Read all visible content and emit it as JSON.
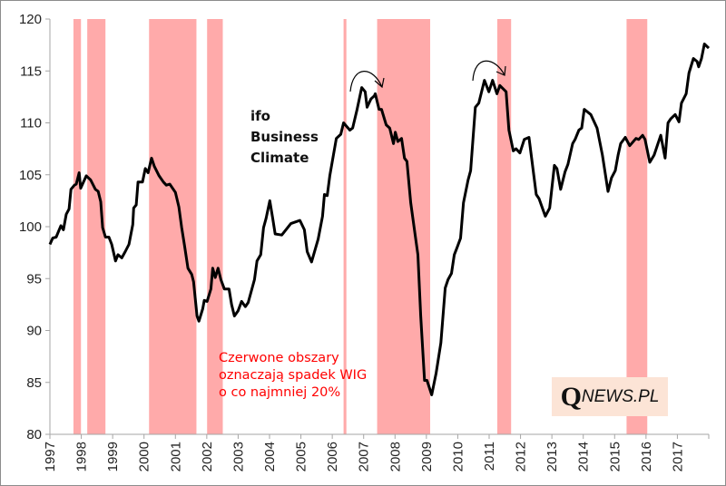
{
  "chart_data": {
    "type": "line",
    "title": "",
    "xlabel": "",
    "ylabel": "",
    "xlim": [
      1997,
      2018
    ],
    "ylim": [
      80,
      120
    ],
    "yticks": [
      80,
      85,
      90,
      95,
      100,
      105,
      110,
      115,
      120
    ],
    "xticks": [
      "1997",
      "1998",
      "1999",
      "2000",
      "2001",
      "2002",
      "2003",
      "2004",
      "2005",
      "2006",
      "2007",
      "2008",
      "2009",
      "2010",
      "2011",
      "2012",
      "2013",
      "2014",
      "2015",
      "2016",
      "2017"
    ],
    "grid": false,
    "legend": "none",
    "line_color": "#000000",
    "band_color": "#ffaaaa",
    "shaded_periods": [
      [
        1997.75,
        1997.99
      ],
      [
        1998.19,
        1998.77
      ],
      [
        2000.16,
        2001.67
      ],
      [
        2002.01,
        2002.51
      ],
      [
        2006.36,
        2006.45
      ],
      [
        2007.43,
        2009.12
      ],
      [
        2011.26,
        2011.7
      ],
      [
        2015.38,
        2016.04
      ]
    ],
    "series": [
      {
        "x": [
          1997.0,
          1997.09,
          1997.2,
          1997.35,
          1997.43,
          1997.52,
          1997.61,
          1997.67,
          1997.78,
          1997.84,
          1997.93,
          1997.98,
          1998.16,
          1998.3,
          1998.45,
          1998.54,
          1998.62,
          1998.68,
          1998.77,
          1998.88,
          1998.97,
          1999.09,
          1999.17,
          1999.29,
          1999.4,
          1999.52,
          1999.64,
          1999.67,
          1999.75,
          1999.81,
          1999.95,
          2000.04,
          2000.13,
          2000.24,
          2000.33,
          2000.48,
          2000.62,
          2000.71,
          2000.82,
          2001.0,
          2001.11,
          2001.2,
          2001.29,
          2001.4,
          2001.52,
          2001.58,
          2001.69,
          2001.75,
          2001.87,
          2001.92,
          2002.01,
          2002.13,
          2002.19,
          2002.27,
          2002.36,
          2002.45,
          2002.56,
          2002.71,
          2002.79,
          2002.88,
          2003.0,
          2003.11,
          2003.23,
          2003.32,
          2003.52,
          2003.6,
          2003.72,
          2003.81,
          2003.89,
          2004.01,
          2004.1,
          2004.18,
          2004.39,
          2004.68,
          2004.97,
          2005.11,
          2005.2,
          2005.34,
          2005.55,
          2005.69,
          2005.75,
          2005.84,
          2005.92,
          2006.13,
          2006.27,
          2006.36,
          2006.56,
          2006.65,
          2006.79,
          2006.94,
          2007.05,
          2007.11,
          2007.23,
          2007.34,
          2007.37,
          2007.49,
          2007.57,
          2007.72,
          2007.83,
          2007.95,
          2008.01,
          2008.09,
          2008.21,
          2008.3,
          2008.38,
          2008.5,
          2008.65,
          2008.73,
          2008.82,
          2008.94,
          2009.02,
          2009.17,
          2009.31,
          2009.46,
          2009.6,
          2009.69,
          2009.8,
          2009.89,
          2009.98,
          2010.09,
          2010.18,
          2010.33,
          2010.41,
          2010.56,
          2010.67,
          2010.85,
          2010.99,
          2011.11,
          2011.25,
          2011.34,
          2011.54,
          2011.63,
          2011.77,
          2011.86,
          2011.98,
          2012.12,
          2012.27,
          2012.5,
          2012.59,
          2012.79,
          2012.93,
          2013.08,
          2013.16,
          2013.28,
          2013.42,
          2013.51,
          2013.66,
          2013.74,
          2013.86,
          2013.95,
          2014.03,
          2014.24,
          2014.44,
          2014.61,
          2014.79,
          2014.9,
          2015.02,
          2015.11,
          2015.19,
          2015.34,
          2015.48,
          2015.68,
          2015.77,
          2015.89,
          2015.97,
          2016.12,
          2016.26,
          2016.47,
          2016.61,
          2016.7,
          2016.79,
          2016.93,
          2017.05,
          2017.13,
          2017.28,
          2017.37,
          2017.51,
          2017.63,
          2017.68,
          2017.77,
          2017.86,
          2018.0
        ],
        "y": [
          98.3,
          98.9,
          99.0,
          100.1,
          99.7,
          101.2,
          101.7,
          103.6,
          104.0,
          104.1,
          105.2,
          103.7,
          104.9,
          104.5,
          103.6,
          103.4,
          102.4,
          99.9,
          99.0,
          99.0,
          98.3,
          96.7,
          97.3,
          97.0,
          97.6,
          98.3,
          100.2,
          101.8,
          102.1,
          104.3,
          104.3,
          105.6,
          105.2,
          106.6,
          105.8,
          104.9,
          104.3,
          104.0,
          104.1,
          103.3,
          101.9,
          99.9,
          98.2,
          96.0,
          95.4,
          94.7,
          91.4,
          90.9,
          92.1,
          92.9,
          92.8,
          94.0,
          96.0,
          95.1,
          96.0,
          94.9,
          94.0,
          94.0,
          92.5,
          91.4,
          91.9,
          92.8,
          92.3,
          92.7,
          94.9,
          96.7,
          97.3,
          99.9,
          100.8,
          102.5,
          100.8,
          99.3,
          99.2,
          100.3,
          100.6,
          99.7,
          97.6,
          96.6,
          98.8,
          101.0,
          103.1,
          103.0,
          104.9,
          108.5,
          108.9,
          110.0,
          109.3,
          109.5,
          111.3,
          113.4,
          113.0,
          111.5,
          112.3,
          112.6,
          112.8,
          111.3,
          111.3,
          109.8,
          109.5,
          108.0,
          109.1,
          108.2,
          108.5,
          106.6,
          106.3,
          102.3,
          99.0,
          97.3,
          91.4,
          85.2,
          85.2,
          83.8,
          85.9,
          88.8,
          94.1,
          94.9,
          95.5,
          97.3,
          98.0,
          98.9,
          102.3,
          104.5,
          105.4,
          111.5,
          111.9,
          114.1,
          113.0,
          114.1,
          112.8,
          113.6,
          113.0,
          109.3,
          107.3,
          107.5,
          107.1,
          108.4,
          108.6,
          103.1,
          102.7,
          101.0,
          101.8,
          105.9,
          105.6,
          103.6,
          105.3,
          106.0,
          108.0,
          108.4,
          109.3,
          109.5,
          111.3,
          110.8,
          109.5,
          106.9,
          103.4,
          104.7,
          105.4,
          106.9,
          108.0,
          108.6,
          107.8,
          108.5,
          108.4,
          108.8,
          108.4,
          106.2,
          106.9,
          108.8,
          106.6,
          110.0,
          110.4,
          110.8,
          110.1,
          111.9,
          112.8,
          114.8,
          116.2,
          115.9,
          115.4,
          116.2,
          117.6,
          117.2
        ]
      }
    ],
    "annotations": {
      "series_label": [
        "ifo",
        "Business",
        "Climate"
      ],
      "note": [
        "Czerwone obszary",
        "oznaczają spadek WIG",
        "o co najmniej 20%"
      ],
      "arrows": [
        "curved-arrow",
        "curved-arrow"
      ]
    }
  },
  "logo": {
    "q": "Q",
    "rest": "NEWS.PL"
  }
}
